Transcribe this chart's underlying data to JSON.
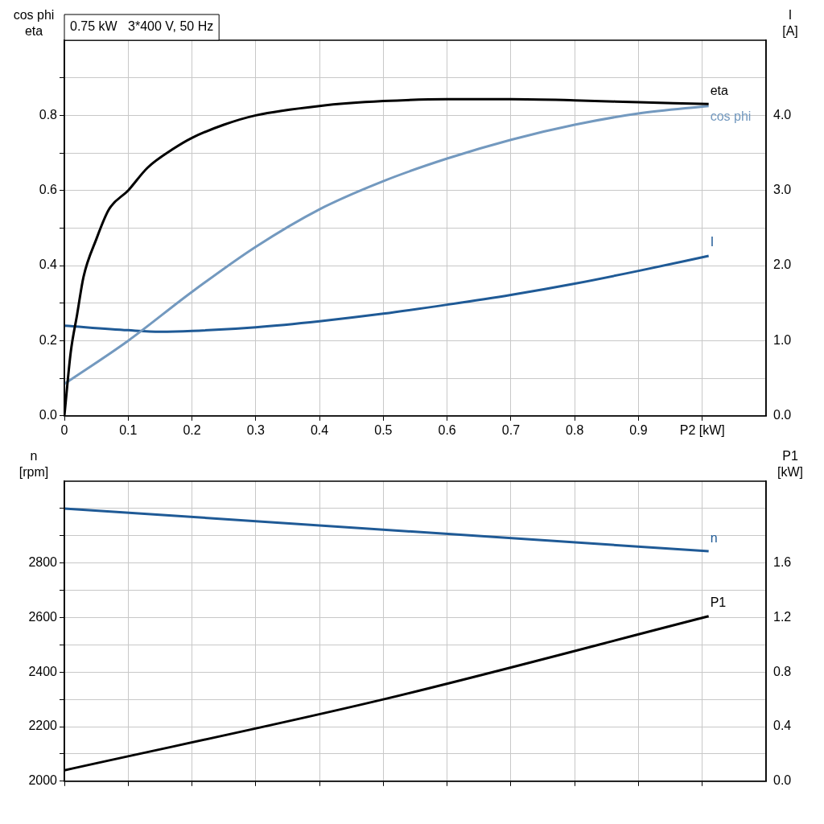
{
  "chart_data": [
    {
      "type": "line",
      "title": "0.75 kW   3*400 V, 50 Hz",
      "ylabel": "cos phi\neta",
      "y2label": "I\n[A]",
      "xlim": [
        0,
        1.1
      ],
      "xticks": [
        {
          "value": 0,
          "label": "0"
        },
        0.1,
        0.2,
        0.3,
        0.4,
        0.5,
        0.6,
        0.7,
        0.8,
        0.9,
        {
          "value": 1.0,
          "label": "P2 [kW]"
        }
      ],
      "ylim": [
        0,
        1.0
      ],
      "yticks": [
        {
          "value": 0,
          "label": "0.0"
        },
        {
          "value": 0.1,
          "label": null
        },
        0.2,
        {
          "value": 0.3,
          "label": null
        },
        0.4,
        {
          "value": 0.5,
          "label": null
        },
        0.6,
        {
          "value": 0.7,
          "label": null
        },
        0.8,
        {
          "value": 0.9,
          "label": null
        }
      ],
      "y2lim": [
        0,
        5
      ],
      "y2ticks": [
        {
          "value": 0,
          "label": "0.0"
        },
        {
          "value": 1,
          "label": "1.0"
        },
        {
          "value": 2,
          "label": "2.0"
        },
        {
          "value": 3,
          "label": "3.0"
        },
        {
          "value": 4,
          "label": "4.0"
        }
      ],
      "grid": true,
      "legend": false,
      "series": [
        {
          "name": "eta",
          "color": "#000000",
          "x": [
            0,
            0.01,
            0.02,
            0.03,
            0.05,
            0.07,
            0.1,
            0.13,
            0.17,
            0.2,
            0.25,
            0.3,
            0.4,
            0.5,
            0.6,
            0.7,
            0.8,
            0.9,
            1.01
          ],
          "values": [
            0,
            0.17,
            0.27,
            0.37,
            0.47,
            0.55,
            0.6,
            0.66,
            0.71,
            0.74,
            0.775,
            0.8,
            0.825,
            0.838,
            0.843,
            0.843,
            0.84,
            0.835,
            0.83
          ]
        },
        {
          "name": "cos phi",
          "color": "#7399bf",
          "x": [
            0,
            0.1,
            0.2,
            0.3,
            0.4,
            0.5,
            0.6,
            0.7,
            0.8,
            0.9,
            1.01
          ],
          "values": [
            0.085,
            0.2,
            0.33,
            0.45,
            0.55,
            0.625,
            0.685,
            0.735,
            0.775,
            0.805,
            0.825
          ]
        },
        {
          "name": "I",
          "color": "#1f5a96",
          "axis": "y2",
          "x": [
            0,
            0.1,
            0.15,
            0.2,
            0.3,
            0.4,
            0.5,
            0.6,
            0.7,
            0.8,
            0.9,
            1.01
          ],
          "values": [
            1.2,
            1.14,
            1.12,
            1.13,
            1.18,
            1.26,
            1.36,
            1.48,
            1.61,
            1.76,
            1.93,
            2.13
          ]
        }
      ]
    },
    {
      "type": "line",
      "ylabel": "n\n[rpm]",
      "y2label": "P1\n[kW]",
      "tick_labels": "y",
      "xlim": [
        0,
        1.1
      ],
      "xticks": [
        {
          "value": 0,
          "label": null
        },
        {
          "value": 0.1,
          "label": null
        },
        {
          "value": 0.2,
          "label": null
        },
        {
          "value": 0.3,
          "label": null
        },
        {
          "value": 0.4,
          "label": null
        },
        {
          "value": 0.5,
          "label": null
        },
        {
          "value": 0.6,
          "label": null
        },
        {
          "value": 0.7,
          "label": null
        },
        {
          "value": 0.8,
          "label": null
        },
        {
          "value": 0.9,
          "label": null
        },
        {
          "value": 1.0,
          "label": null
        }
      ],
      "ylim": [
        2000,
        3100
      ],
      "yticks": [
        2000,
        {
          "value": 2100,
          "label": null
        },
        2200,
        {
          "value": 2300,
          "label": null
        },
        2400,
        {
          "value": 2500,
          "label": null
        },
        2600,
        {
          "value": 2700,
          "label": null
        },
        2800,
        {
          "value": 2900,
          "label": null
        },
        {
          "value": 3000,
          "label": null
        }
      ],
      "y2lim": [
        0,
        2.2
      ],
      "y2ticks": [
        {
          "value": 0,
          "label": "0.0"
        },
        0.4,
        0.8,
        1.2,
        1.6
      ],
      "grid": true,
      "legend": false,
      "series": [
        {
          "name": "n",
          "color": "#1f5a96",
          "x": [
            0,
            1.01
          ],
          "values": [
            3000,
            2843
          ]
        },
        {
          "name": "P1",
          "color": "#000000",
          "axis": "y2",
          "x": [
            0,
            0.5,
            1.01
          ],
          "values": [
            0.08,
            0.6,
            1.21
          ]
        }
      ]
    }
  ]
}
